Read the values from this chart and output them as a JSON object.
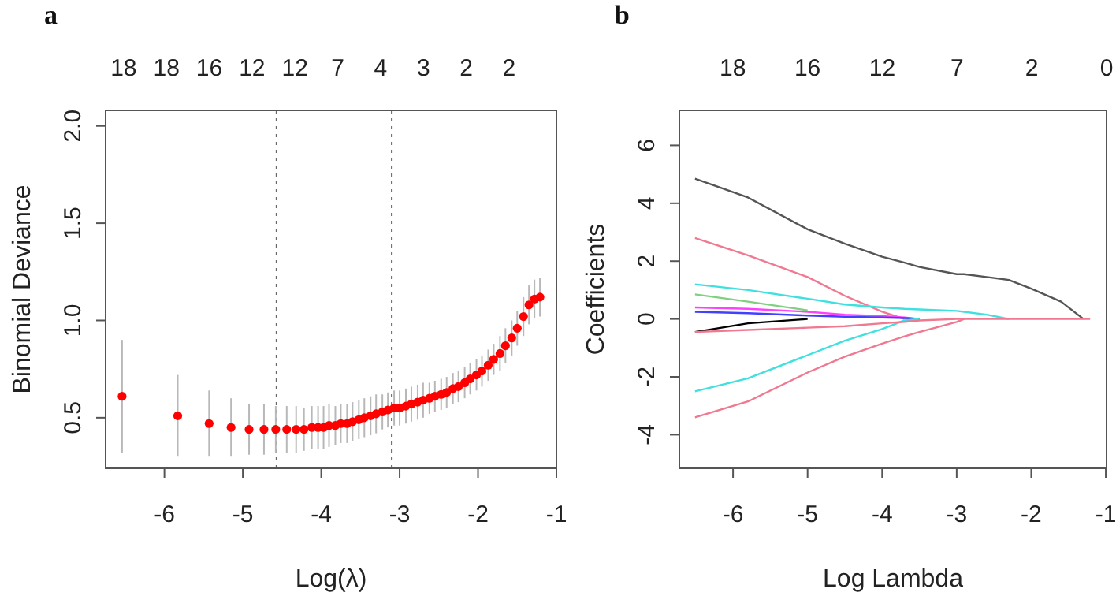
{
  "chart_data": [
    {
      "type": "scatter",
      "title": "a",
      "xlabel": "Log(λ)",
      "ylabel": "Binomial Deviance",
      "color": "#ff0000",
      "marker": "circle",
      "xlim": [
        -6.75,
        -1.0
      ],
      "xticks": [
        -6,
        -5,
        -4,
        -3,
        -2,
        -1
      ],
      "ylim": [
        0.24,
        2.08
      ],
      "yticks": [
        0.5,
        {
          "value": 1,
          "label": "1.0"
        },
        1.5,
        {
          "value": 2,
          "label": "2.0"
        }
      ],
      "annotations": [
        "18",
        "18",
        "16",
        "12",
        "12",
        "7",
        "4",
        "3",
        "2",
        "2"
      ],
      "x": [
        -6.54,
        -5.83,
        -5.43,
        -5.15,
        -4.92,
        -4.73,
        -4.58,
        -4.44,
        -4.32,
        -4.22,
        -4.12,
        -4.04,
        -3.97,
        -3.9,
        -3.82,
        -3.75,
        -3.67,
        -3.6,
        -3.52,
        -3.45,
        -3.37,
        -3.3,
        -3.22,
        -3.15,
        -3.07,
        -3.0,
        -2.92,
        -2.85,
        -2.77,
        -2.7,
        -2.62,
        -2.55,
        -2.47,
        -2.4,
        -2.32,
        -2.25,
        -2.17,
        -2.1,
        -2.02,
        -1.95,
        -1.87,
        -1.8,
        -1.72,
        -1.65,
        -1.57,
        -1.5,
        -1.42,
        -1.35,
        -1.28,
        -1.21
      ],
      "values": [
        0.61,
        0.51,
        0.47,
        0.45,
        0.44,
        0.44,
        0.44,
        0.44,
        0.44,
        0.44,
        0.45,
        0.45,
        0.45,
        0.46,
        0.46,
        0.47,
        0.47,
        0.48,
        0.49,
        0.5,
        0.51,
        0.52,
        0.53,
        0.54,
        0.55,
        0.55,
        0.56,
        0.57,
        0.58,
        0.59,
        0.6,
        0.61,
        0.62,
        0.63,
        0.65,
        0.66,
        0.68,
        0.7,
        0.72,
        0.74,
        0.77,
        0.8,
        0.83,
        0.87,
        0.91,
        0.96,
        1.02,
        1.08,
        1.11,
        1.12
      ],
      "errors": [
        0.29,
        0.21,
        0.17,
        0.15,
        0.13,
        0.13,
        0.12,
        0.12,
        0.12,
        0.11,
        0.11,
        0.11,
        0.11,
        0.11,
        0.1,
        0.1,
        0.1,
        0.1,
        0.1,
        0.1,
        0.1,
        0.1,
        0.09,
        0.09,
        0.09,
        0.09,
        0.09,
        0.09,
        0.09,
        0.09,
        0.08,
        0.08,
        0.08,
        0.08,
        0.08,
        0.08,
        0.08,
        0.08,
        0.08,
        0.08,
        0.08,
        0.08,
        0.09,
        0.09,
        0.09,
        0.09,
        0.1,
        0.1,
        0.1,
        0.1
      ],
      "ref_lines": [
        {
          "axis": "x",
          "value": -4.57,
          "color": "#666666",
          "line_style": "dotted"
        },
        {
          "axis": "x",
          "value": -3.1,
          "color": "#666666",
          "line_style": "dotted"
        }
      ]
    },
    {
      "type": "line",
      "title": "b",
      "xlabel": "Log Lambda",
      "ylabel": "Coefficients",
      "xlim": [
        -6.72,
        -0.99
      ],
      "xticks": [
        -6,
        -5,
        -4,
        -3,
        -2,
        -1
      ],
      "ylim": [
        -5.16,
        7.21
      ],
      "yticks": [
        6,
        4,
        2,
        0,
        -2,
        -4
      ],
      "annotations": [
        "18",
        "16",
        "12",
        "7",
        "2",
        "0"
      ],
      "x": [
        -6.51,
        -5.8,
        -5.0,
        -4.5,
        -4.0,
        -3.7,
        -3.5,
        -3.0,
        -2.9,
        -2.6,
        -2.3,
        -2.0,
        -1.6,
        -1.3,
        -1.21
      ],
      "series": [
        {
          "color": "#555555",
          "values": [
            4.85,
            4.2,
            3.1,
            2.6,
            2.15,
            1.95,
            1.8,
            1.55,
            1.55,
            1.45,
            1.35,
            1.05,
            0.6,
            0,
            null
          ]
        },
        {
          "color": "#f07890",
          "values": [
            2.8,
            2.2,
            1.45,
            0.8,
            0.25,
            0,
            null,
            null,
            null,
            null,
            null,
            null,
            null,
            null,
            null
          ]
        },
        {
          "color": "#40e0e0",
          "values": [
            1.2,
            1.0,
            0.7,
            0.5,
            0.4,
            0.35,
            0.33,
            0.28,
            0.25,
            0.15,
            0,
            null,
            null,
            null,
            null
          ]
        },
        {
          "color": "#80d080",
          "values": [
            0.85,
            0.6,
            0.3,
            null,
            null,
            null,
            null,
            null,
            null,
            null,
            null,
            null,
            null,
            null,
            null
          ]
        },
        {
          "color": "#ff40ff",
          "values": [
            0.4,
            0.35,
            0.25,
            0.15,
            0.1,
            0.05,
            0,
            null,
            null,
            null,
            null,
            null,
            null,
            null,
            null
          ]
        },
        {
          "color": "#4040ff",
          "values": [
            0.25,
            0.2,
            0.12,
            0.08,
            0.05,
            0.03,
            0,
            null,
            null,
            null,
            null,
            null,
            null,
            null,
            null
          ]
        },
        {
          "color": "#000000",
          "values": [
            -0.45,
            -0.15,
            0,
            null,
            null,
            null,
            null,
            null,
            null,
            null,
            null,
            null,
            null,
            null,
            null
          ]
        },
        {
          "color": "#40e0e0",
          "values": [
            -2.5,
            -2.05,
            -1.25,
            -0.75,
            -0.35,
            -0.05,
            0,
            null,
            null,
            null,
            null,
            null,
            null,
            null,
            null
          ]
        },
        {
          "color": "#f07890",
          "values": [
            -3.4,
            -2.85,
            -1.85,
            -1.3,
            -0.85,
            -0.6,
            -0.45,
            -0.1,
            0,
            null,
            null,
            null,
            null,
            null,
            null
          ]
        },
        {
          "color": "#f07890",
          "values": [
            -0.45,
            -0.38,
            -0.3,
            -0.25,
            -0.15,
            -0.1,
            -0.05,
            0,
            0,
            0,
            0,
            0,
            0,
            0,
            0
          ]
        }
      ]
    }
  ]
}
